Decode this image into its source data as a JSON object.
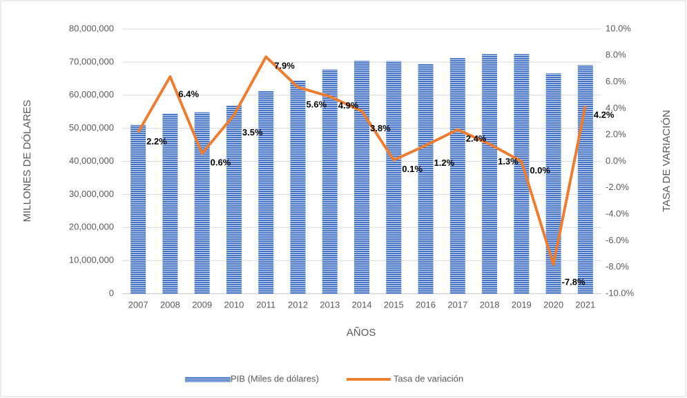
{
  "chart_data": {
    "type": "bar",
    "x_label": "AÑOS",
    "y_label": "MILLONES DE DÓLARES",
    "y2_label": "TASA DE VARIACIÓN",
    "categories": [
      "2007",
      "2008",
      "2009",
      "2010",
      "2011",
      "2012",
      "2013",
      "2014",
      "2015",
      "2016",
      "2017",
      "2018",
      "2019",
      "2020",
      "2021"
    ],
    "series": [
      {
        "name": "PIB (Miles de dólares)",
        "type": "bar",
        "color": "#4472c4",
        "axis": "y",
        "values": [
          51000000,
          54500000,
          54800000,
          56800000,
          61200000,
          64500000,
          67800000,
          70400000,
          70300000,
          69500000,
          71200000,
          72400000,
          72400000,
          66600000,
          69100000
        ]
      },
      {
        "name": "Tasa de variación",
        "type": "line",
        "color": "#ed7d31",
        "axis": "y2",
        "values": [
          2.2,
          6.4,
          0.6,
          3.5,
          7.9,
          5.6,
          4.9,
          3.8,
          0.1,
          1.2,
          2.4,
          1.3,
          0.0,
          -7.8,
          4.2
        ],
        "value_labels": [
          "2.2%",
          "6.4%",
          "0.6%",
          "3.5%",
          "7.9%",
          "5.6%",
          "4.9%",
          "3.8%",
          "0.1%",
          "1.2%",
          "2.4%",
          "1.3%",
          "0.0%",
          "-7.8%",
          "4.2%"
        ]
      }
    ],
    "ylim": [
      0,
      80000000
    ],
    "yticks": [
      {
        "value": 0,
        "label": "0"
      },
      {
        "value": 10000000,
        "label": "10,000,000"
      },
      {
        "value": 20000000,
        "label": "20,000,000"
      },
      {
        "value": 30000000,
        "label": "30,000,000"
      },
      {
        "value": 40000000,
        "label": "40,000,000"
      },
      {
        "value": 50000000,
        "label": "50,000,000"
      },
      {
        "value": 60000000,
        "label": "60,000,000"
      },
      {
        "value": 70000000,
        "label": "70,000,000"
      },
      {
        "value": 80000000,
        "label": "80,000,000"
      }
    ],
    "y2lim": [
      -10,
      10
    ],
    "y2ticks": [
      {
        "value": -10,
        "label": "-10.0%"
      },
      {
        "value": -8,
        "label": "-8.0%"
      },
      {
        "value": -6,
        "label": "-6.0%"
      },
      {
        "value": -4,
        "label": "-4.0%"
      },
      {
        "value": -2,
        "label": "-2.0%"
      },
      {
        "value": 0,
        "label": "0.0%"
      },
      {
        "value": 2,
        "label": "2.0%"
      },
      {
        "value": 4,
        "label": "4.0%"
      },
      {
        "value": 6,
        "label": "6.0%"
      },
      {
        "value": 8,
        "label": "8.0%"
      },
      {
        "value": 10,
        "label": "10.0%"
      }
    ],
    "grid": true,
    "legend": "bottom"
  }
}
